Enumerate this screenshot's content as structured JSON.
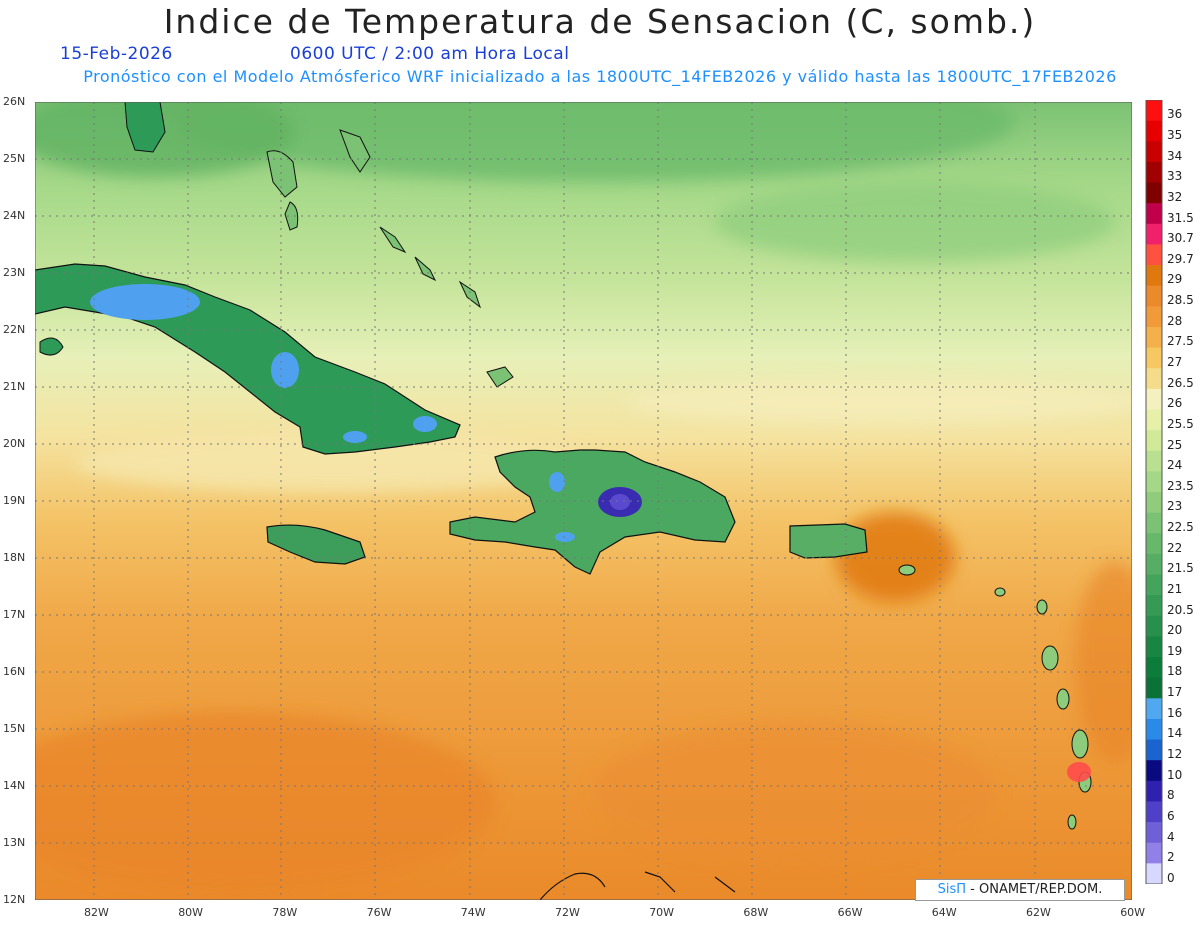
{
  "header": {
    "title": "Indice de Temperatura de Sensacion (C, somb.)",
    "date": "15-Feb-2026",
    "time": "0600 UTC / 2:00 am Hora Local",
    "model_line": "Pronóstico con el Modelo Atmósferico WRF inicializado a las 1800UTC_14FEB2026 y válido hasta las  1800UTC_17FEB2026"
  },
  "axes": {
    "lat_labels": [
      "26N",
      "25N",
      "24N",
      "23N",
      "22N",
      "21N",
      "20N",
      "19N",
      "18N",
      "17N",
      "16N",
      "15N",
      "14N",
      "13N",
      "12N"
    ],
    "lon_labels": [
      "82W",
      "80W",
      "78W",
      "76W",
      "74W",
      "72W",
      "70W",
      "68W",
      "66W",
      "64W",
      "62W",
      "60W"
    ],
    "lat_range": [
      12,
      26
    ],
    "lon_range": [
      -83.2,
      -60
    ]
  },
  "colorbar": {
    "labels": [
      "36",
      "35",
      "34",
      "33",
      "32",
      "31.5",
      "30.7",
      "29.7",
      "29",
      "28.5",
      "28",
      "27.5",
      "27",
      "26.5",
      "26",
      "25.5",
      "25",
      "24",
      "23.5",
      "23",
      "22.5",
      "22",
      "21.5",
      "21",
      "20.5",
      "20",
      "19",
      "18",
      "17",
      "16",
      "14",
      "12",
      "10",
      "8",
      "6",
      "4",
      "2",
      "0"
    ],
    "colors": [
      "#ff1010",
      "#e60000",
      "#c80000",
      "#a00000",
      "#800000",
      "#c0004a",
      "#f0206a",
      "#ff5040",
      "#e07810",
      "#ea8a2a",
      "#f09a3a",
      "#f4b04a",
      "#f5c862",
      "#f5dc8a",
      "#f5f0c0",
      "#e6f0a8",
      "#d0ea98",
      "#b8e090",
      "#a4d888",
      "#90cc7c",
      "#7cc274",
      "#68b86c",
      "#56ae64",
      "#44a45c",
      "#349a54",
      "#26904c",
      "#188642",
      "#0c7c3a",
      "#0a7236",
      "#50a8f0",
      "#2a8ae8",
      "#1a64d0",
      "#0a0a80",
      "#3020b0",
      "#5040c8",
      "#7060d8",
      "#9080e8",
      "#d8d8ff"
    ]
  },
  "credit": {
    "sis": "SisΠ",
    "rest": " - ONAMET/REP.DOM."
  }
}
